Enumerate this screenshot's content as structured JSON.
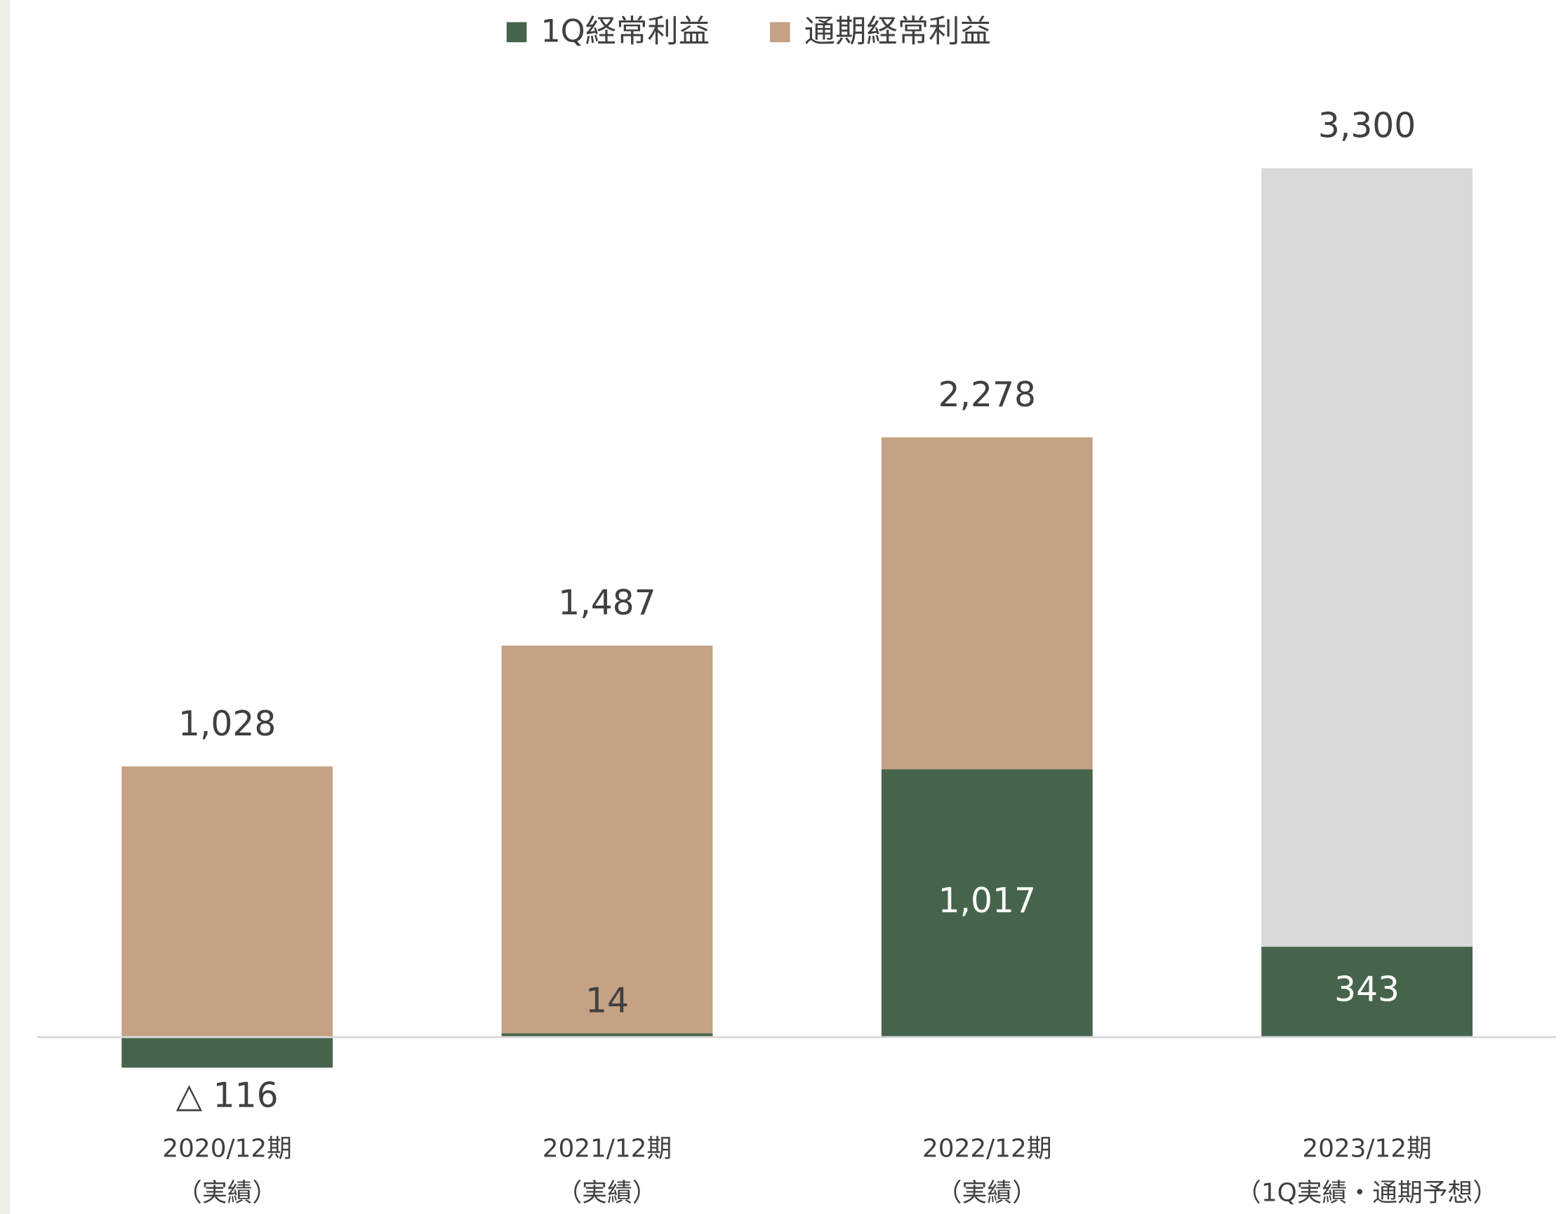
{
  "chart_data": {
    "type": "bar",
    "categories": [
      [
        "2020/12期",
        "（実績）"
      ],
      [
        "2021/12期",
        "（実績）"
      ],
      [
        "2022/12期",
        "（実績）"
      ],
      [
        "2023/12期",
        "（1Q実績・通期予想）"
      ]
    ],
    "series": [
      {
        "name": "通期経常利益",
        "color": "#c4a283",
        "colors": [
          "#c4a283",
          "#c4a283",
          "#c4a283",
          "#d9d9d9"
        ],
        "values": [
          1028,
          1487,
          2278,
          3300
        ],
        "value_labels": [
          "1,028",
          "1,487",
          "2,278",
          "3,300"
        ]
      },
      {
        "name": "1Q経常利益",
        "color": "#46644c",
        "colors": [
          "#46644c",
          "#46644c",
          "#46644c",
          "#46644c"
        ],
        "values": [
          -116,
          14,
          1017,
          343
        ],
        "value_labels": [
          "△ 116",
          "14",
          "1,017",
          "343"
        ]
      }
    ],
    "ylim": [
      -500,
      3500
    ]
  }
}
